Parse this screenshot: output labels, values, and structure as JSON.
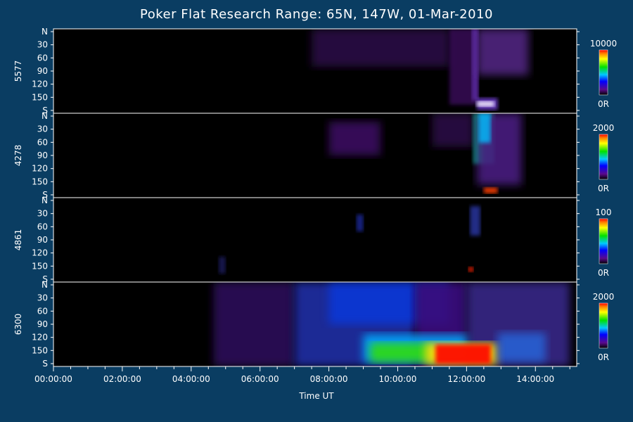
{
  "title": "Poker Flat Research Range: 65N, 147W, 01-Mar-2010",
  "colors": {
    "background": "#0a3d62",
    "plot_bg": "#000000",
    "divider": "#ffffff"
  },
  "chart_data": {
    "type": "heatmap",
    "title": "Poker Flat Research Range: 65N, 147W, 01-Mar-2010",
    "xlabel": "Time UT",
    "x_range_hours": [
      0,
      15.2
    ],
    "x_ticks": [
      "00:00:00",
      "02:00:00",
      "04:00:00",
      "06:00:00",
      "08:00:00",
      "10:00:00",
      "12:00:00",
      "14:00:00"
    ],
    "y_ticks": [
      "N",
      "30",
      "60",
      "90",
      "120",
      "150",
      "S"
    ],
    "panels": [
      {
        "wavelength": "5577",
        "scale_max": "10000",
        "scale_min": "0R"
      },
      {
        "wavelength": "4278",
        "scale_max": "2000",
        "scale_min": "0R"
      },
      {
        "wavelength": "4861",
        "scale_max": "100",
        "scale_min": "0R"
      },
      {
        "wavelength": "6300",
        "scale_max": "2000",
        "scale_min": "0R"
      }
    ]
  }
}
